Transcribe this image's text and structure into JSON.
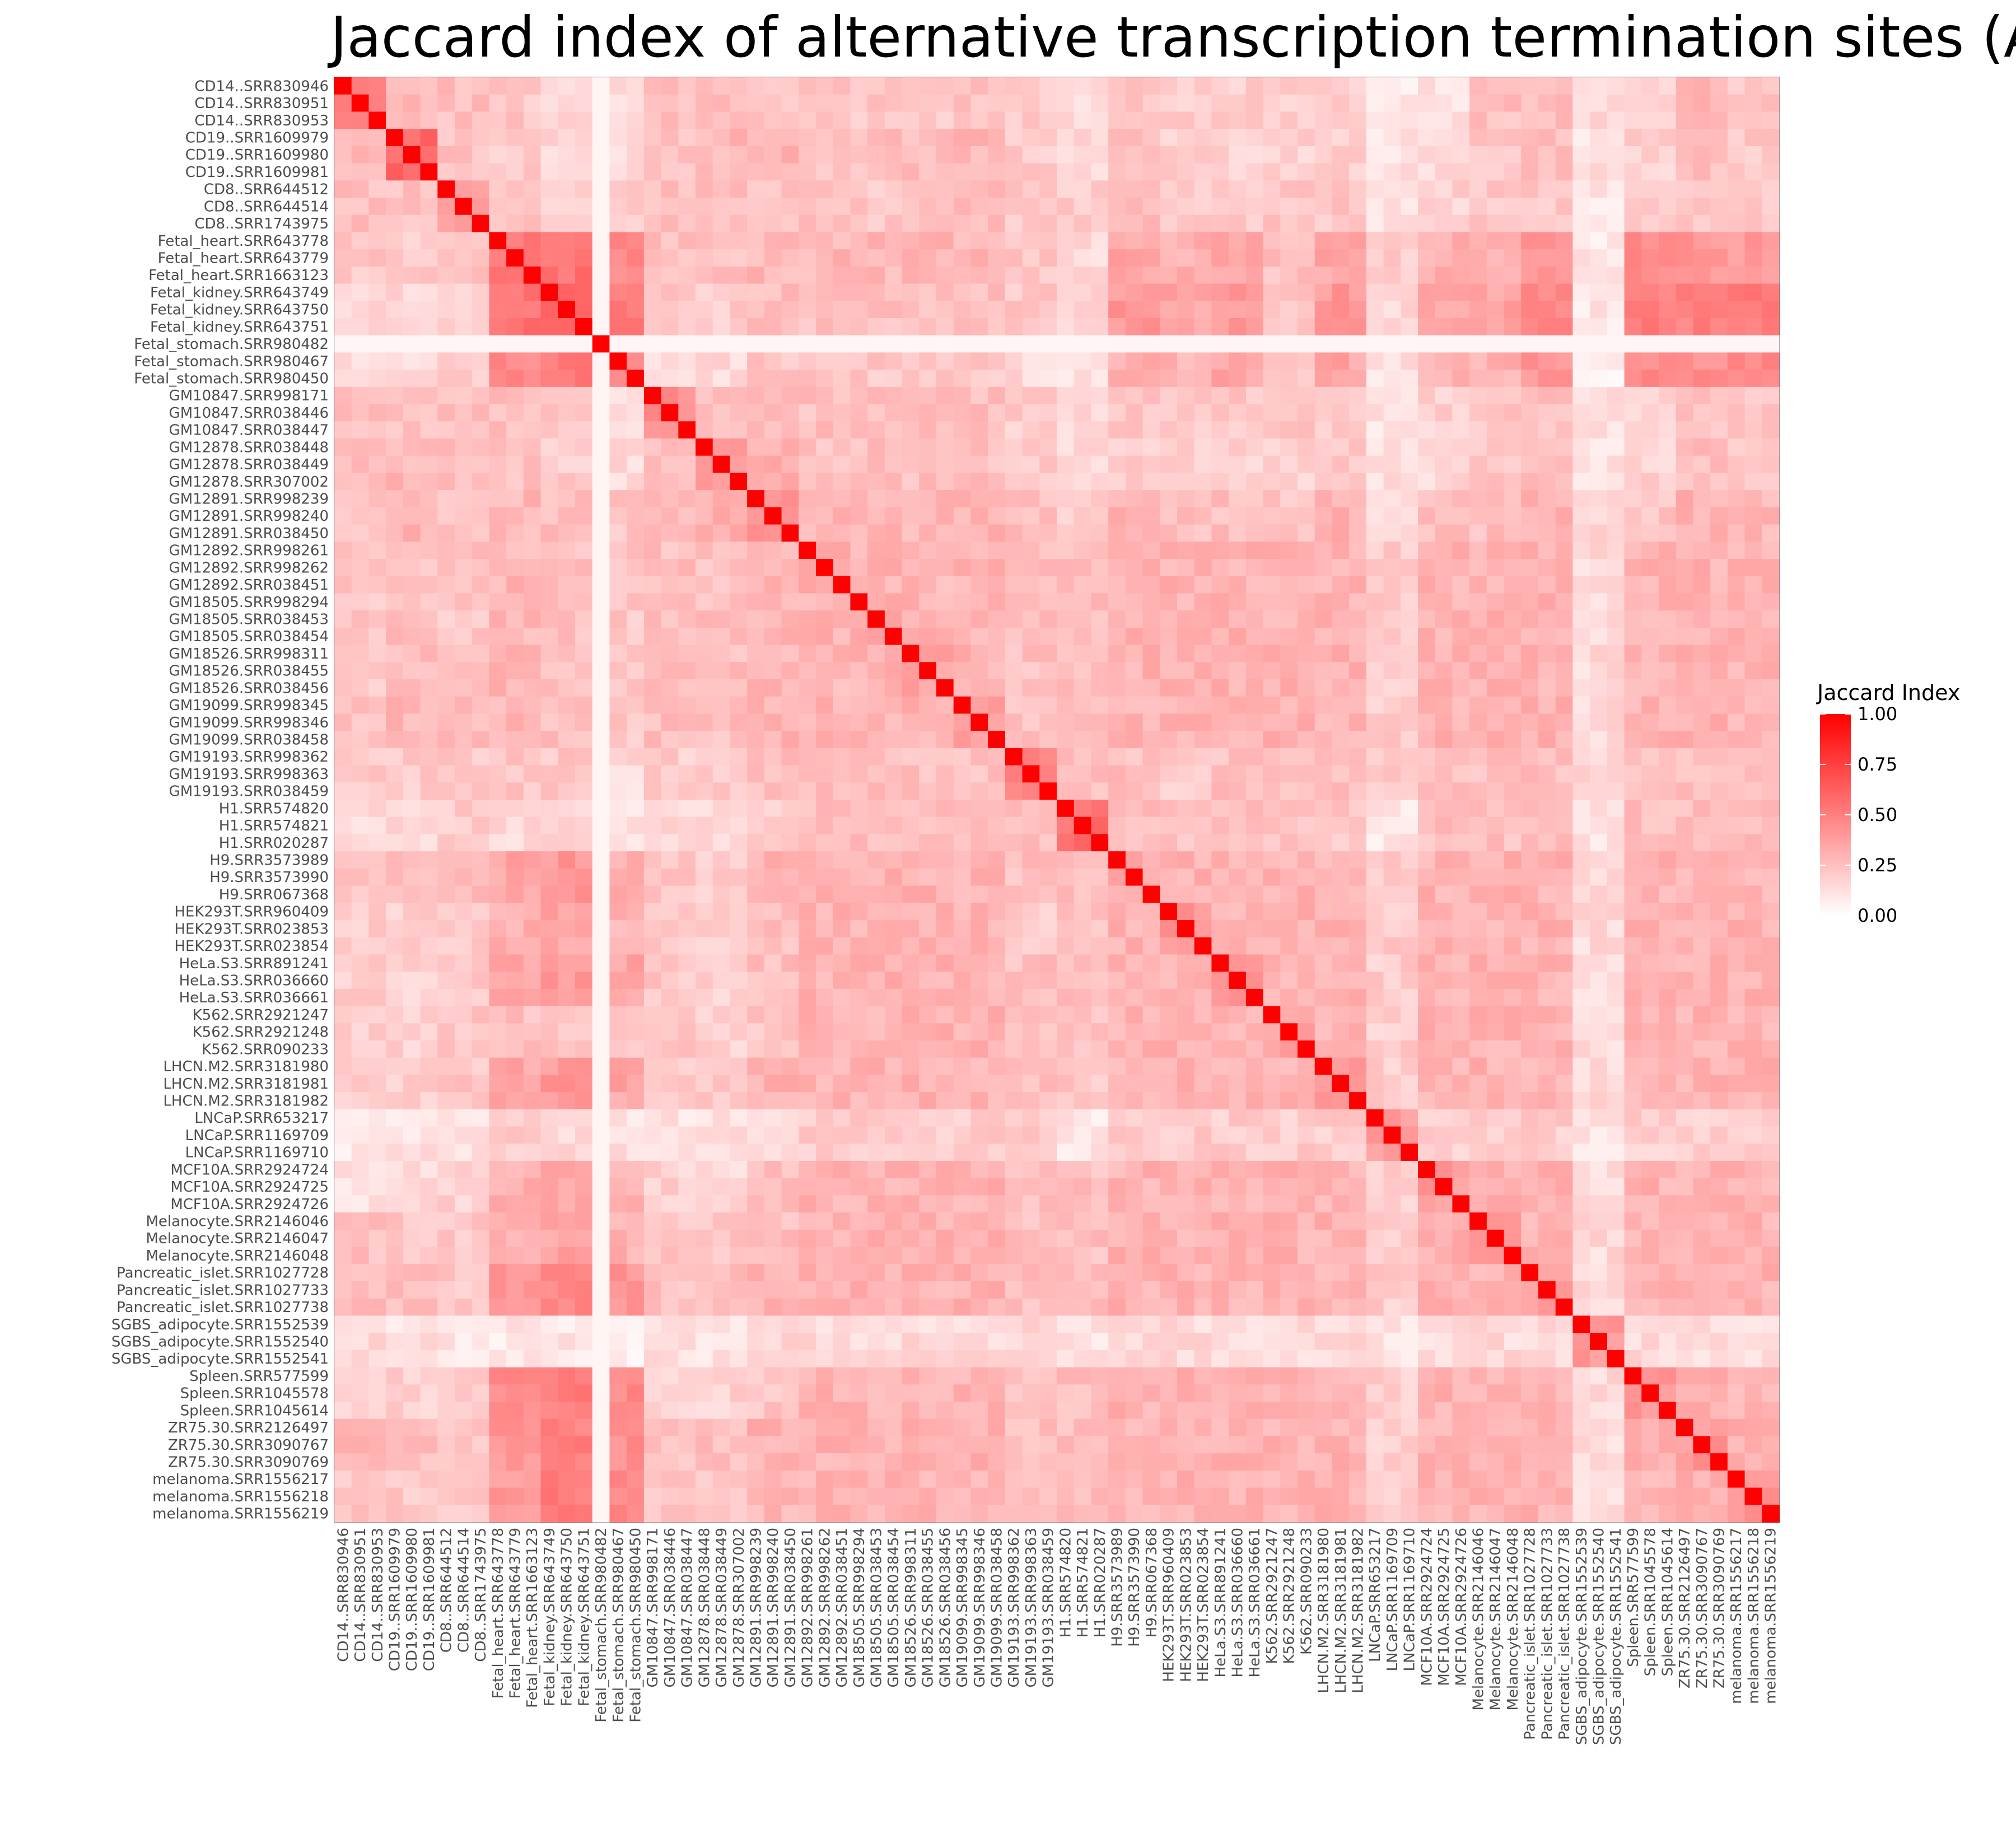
{
  "chart_data": {
    "type": "heatmap",
    "title": "Jaccard index of alternative transcription termination sites (A",
    "xlabel": "",
    "ylabel": "",
    "zlim": [
      0,
      1
    ],
    "color_scale": {
      "low": "#ffffff",
      "high": "#ff0000"
    },
    "legend": {
      "title": "Jaccard Index",
      "ticks": [
        "1.00",
        "0.75",
        "0.50",
        "0.25",
        "0.00"
      ],
      "tick_values": [
        1.0,
        0.75,
        0.5,
        0.25,
        0.0
      ],
      "placement": "right"
    },
    "samples": [
      "CD14..SRR830946",
      "CD14..SRR830951",
      "CD14..SRR830953",
      "CD19..SRR1609979",
      "CD19..SRR1609980",
      "CD19..SRR1609981",
      "CD8..SRR644512",
      "CD8..SRR644514",
      "CD8..SRR1743975",
      "Fetal_heart.SRR643778",
      "Fetal_heart.SRR643779",
      "Fetal_heart.SRR1663123",
      "Fetal_kidney.SRR643749",
      "Fetal_kidney.SRR643750",
      "Fetal_kidney.SRR643751",
      "Fetal_stomach.SRR980482",
      "Fetal_stomach.SRR980467",
      "Fetal_stomach.SRR980450",
      "GM10847.SRR998171",
      "GM10847.SRR038446",
      "GM10847.SRR038447",
      "GM12878.SRR038448",
      "GM12878.SRR038449",
      "GM12878.SRR307002",
      "GM12891.SRR998239",
      "GM12891.SRR998240",
      "GM12891.SRR038450",
      "GM12892.SRR998261",
      "GM12892.SRR998262",
      "GM12892.SRR038451",
      "GM18505.SRR998294",
      "GM18505.SRR038453",
      "GM18505.SRR038454",
      "GM18526.SRR998311",
      "GM18526.SRR038455",
      "GM18526.SRR038456",
      "GM19099.SRR998345",
      "GM19099.SRR998346",
      "GM19099.SRR038458",
      "GM19193.SRR998362",
      "GM19193.SRR998363",
      "GM19193.SRR038459",
      "H1.SRR574820",
      "H1.SRR574821",
      "H1.SRR020287",
      "H9.SRR3573989",
      "H9.SRR3573990",
      "H9.SRR067368",
      "HEK293T.SRR960409",
      "HEK293T.SRR023853",
      "HEK293T.SRR023854",
      "HeLa.S3.SRR891241",
      "HeLa.S3.SRR036660",
      "HeLa.S3.SRR036661",
      "K562.SRR2921247",
      "K562.SRR2921248",
      "K562.SRR090233",
      "LHCN.M2.SRR3181980",
      "LHCN.M2.SRR3181981",
      "LHCN.M2.SRR3181982",
      "LNCaP.SRR653217",
      "LNCaP.SRR1169709",
      "LNCaP.SRR1169710",
      "MCF10A.SRR2924724",
      "MCF10A.SRR2924725",
      "MCF10A.SRR2924726",
      "Melanocyte.SRR2146046",
      "Melanocyte.SRR2146047",
      "Melanocyte.SRR2146048",
      "Pancreatic_islet.SRR1027728",
      "Pancreatic_islet.SRR1027733",
      "Pancreatic_islet.SRR1027738",
      "SGBS_adipocyte.SRR1552539",
      "SGBS_adipocyte.SRR1552540",
      "SGBS_adipocyte.SRR1552541",
      "Spleen.SRR577599",
      "Spleen.SRR1045578",
      "Spleen.SRR1045614",
      "ZR75.30.SRR2126497",
      "ZR75.30.SRR3090767",
      "ZR75.30.SRR3090769",
      "melanoma.SRR1556217",
      "melanoma.SRR1556218",
      "melanoma.SRR1556219"
    ],
    "block_means": [
      [
        0.55,
        0.28,
        0.25,
        0.22,
        0.15,
        0.12,
        0.25,
        0.25,
        0.22,
        0.22,
        0.22,
        0.22,
        0.25,
        0.2,
        0.15,
        0.25,
        0.2,
        0.2,
        0.2,
        0.2,
        0.1,
        0.12,
        0.25,
        0.25,
        0.15,
        0.2,
        0.3,
        0.22,
        0.22,
        0.22
      ],
      [
        0.28,
        0.6,
        0.25,
        0.2,
        0.15,
        0.12,
        0.25,
        0.28,
        0.3,
        0.22,
        0.25,
        0.25,
        0.28,
        0.2,
        0.15,
        0.25,
        0.2,
        0.18,
        0.18,
        0.2,
        0.12,
        0.15,
        0.22,
        0.25,
        0.12,
        0.18,
        0.25,
        0.22,
        0.15,
        0.2
      ],
      [
        0.25,
        0.25,
        0.35,
        0.22,
        0.2,
        0.2,
        0.25,
        0.25,
        0.25,
        0.25,
        0.22,
        0.22,
        0.25,
        0.22,
        0.2,
        0.25,
        0.2,
        0.22,
        0.22,
        0.22,
        0.12,
        0.18,
        0.22,
        0.22,
        0.1,
        0.22,
        0.22,
        0.22,
        0.15,
        0.15
      ],
      [
        0.22,
        0.2,
        0.22,
        0.55,
        0.55,
        0.45,
        0.25,
        0.25,
        0.28,
        0.28,
        0.28,
        0.3,
        0.28,
        0.22,
        0.15,
        0.35,
        0.3,
        0.35,
        0.25,
        0.35,
        0.2,
        0.3,
        0.3,
        0.4,
        0.1,
        0.45,
        0.4,
        0.4,
        0.15,
        0.15
      ],
      [
        0.15,
        0.15,
        0.2,
        0.55,
        0.65,
        0.5,
        0.22,
        0.2,
        0.25,
        0.25,
        0.25,
        0.25,
        0.25,
        0.22,
        0.15,
        0.4,
        0.35,
        0.4,
        0.22,
        0.4,
        0.15,
        0.35,
        0.35,
        0.45,
        0.1,
        0.5,
        0.5,
        0.5,
        0.15,
        0.15
      ],
      [
        0.12,
        0.12,
        0.2,
        0.45,
        0.5,
        0.45,
        0.15,
        0.15,
        0.22,
        0.22,
        0.22,
        0.22,
        0.22,
        0.15,
        0.1,
        0.3,
        0.3,
        0.35,
        0.2,
        0.35,
        0.12,
        0.3,
        0.3,
        0.4,
        0.08,
        0.45,
        0.45,
        0.45,
        0.1,
        0.1
      ],
      [
        0.25,
        0.25,
        0.25,
        0.25,
        0.22,
        0.15,
        0.45,
        0.25,
        0.28,
        0.25,
        0.25,
        0.25,
        0.25,
        0.2,
        0.15,
        0.22,
        0.2,
        0.22,
        0.22,
        0.22,
        0.12,
        0.18,
        0.22,
        0.25,
        0.12,
        0.18,
        0.25,
        0.22,
        0.15,
        0.2
      ],
      [
        0.25,
        0.28,
        0.25,
        0.25,
        0.2,
        0.15,
        0.25,
        0.4,
        0.3,
        0.25,
        0.25,
        0.25,
        0.25,
        0.2,
        0.15,
        0.2,
        0.2,
        0.18,
        0.18,
        0.2,
        0.12,
        0.15,
        0.22,
        0.25,
        0.12,
        0.18,
        0.25,
        0.22,
        0.15,
        0.2
      ],
      [
        0.22,
        0.3,
        0.25,
        0.28,
        0.25,
        0.22,
        0.28,
        0.3,
        0.4,
        0.28,
        0.28,
        0.28,
        0.3,
        0.25,
        0.2,
        0.3,
        0.25,
        0.25,
        0.22,
        0.3,
        0.15,
        0.25,
        0.25,
        0.3,
        0.15,
        0.22,
        0.3,
        0.28,
        0.15,
        0.2
      ],
      [
        0.22,
        0.22,
        0.25,
        0.28,
        0.25,
        0.22,
        0.25,
        0.25,
        0.28,
        0.35,
        0.3,
        0.28,
        0.3,
        0.25,
        0.25,
        0.3,
        0.3,
        0.3,
        0.3,
        0.3,
        0.2,
        0.3,
        0.3,
        0.3,
        0.15,
        0.3,
        0.3,
        0.3,
        0.2,
        0.2
      ],
      [
        0.22,
        0.25,
        0.22,
        0.28,
        0.25,
        0.22,
        0.25,
        0.25,
        0.28,
        0.3,
        0.35,
        0.3,
        0.3,
        0.25,
        0.25,
        0.3,
        0.3,
        0.3,
        0.3,
        0.3,
        0.2,
        0.3,
        0.3,
        0.3,
        0.15,
        0.3,
        0.3,
        0.3,
        0.2,
        0.2
      ],
      [
        0.22,
        0.25,
        0.22,
        0.3,
        0.25,
        0.22,
        0.25,
        0.25,
        0.28,
        0.28,
        0.3,
        0.35,
        0.3,
        0.25,
        0.25,
        0.3,
        0.3,
        0.3,
        0.3,
        0.3,
        0.2,
        0.3,
        0.3,
        0.3,
        0.15,
        0.3,
        0.3,
        0.3,
        0.2,
        0.2
      ],
      [
        0.25,
        0.28,
        0.25,
        0.28,
        0.25,
        0.22,
        0.25,
        0.25,
        0.3,
        0.3,
        0.3,
        0.3,
        0.35,
        0.25,
        0.25,
        0.3,
        0.3,
        0.3,
        0.3,
        0.3,
        0.2,
        0.3,
        0.3,
        0.3,
        0.15,
        0.3,
        0.3,
        0.3,
        0.2,
        0.2
      ],
      [
        0.2,
        0.2,
        0.22,
        0.22,
        0.22,
        0.15,
        0.2,
        0.2,
        0.25,
        0.25,
        0.25,
        0.25,
        0.25,
        0.45,
        0.25,
        0.25,
        0.2,
        0.25,
        0.25,
        0.25,
        0.2,
        0.25,
        0.25,
        0.25,
        0.15,
        0.25,
        0.25,
        0.25,
        0.2,
        0.2
      ],
      [
        0.15,
        0.15,
        0.2,
        0.15,
        0.15,
        0.1,
        0.15,
        0.15,
        0.2,
        0.25,
        0.25,
        0.25,
        0.25,
        0.25,
        0.55,
        0.25,
        0.25,
        0.25,
        0.25,
        0.22,
        0.1,
        0.25,
        0.25,
        0.25,
        0.1,
        0.25,
        0.25,
        0.25,
        0.15,
        0.15
      ],
      [
        0.25,
        0.25,
        0.25,
        0.35,
        0.4,
        0.3,
        0.22,
        0.2,
        0.3,
        0.3,
        0.3,
        0.3,
        0.3,
        0.25,
        0.25,
        0.35,
        0.3,
        0.3,
        0.3,
        0.3,
        0.2,
        0.3,
        0.3,
        0.3,
        0.15,
        0.3,
        0.3,
        0.3,
        0.2,
        0.2
      ],
      [
        0.2,
        0.2,
        0.2,
        0.3,
        0.35,
        0.3,
        0.2,
        0.2,
        0.25,
        0.3,
        0.3,
        0.3,
        0.3,
        0.2,
        0.25,
        0.3,
        0.4,
        0.3,
        0.3,
        0.3,
        0.2,
        0.3,
        0.3,
        0.3,
        0.15,
        0.3,
        0.3,
        0.3,
        0.2,
        0.2
      ],
      [
        0.2,
        0.18,
        0.22,
        0.35,
        0.4,
        0.35,
        0.22,
        0.18,
        0.25,
        0.3,
        0.3,
        0.3,
        0.3,
        0.25,
        0.25,
        0.3,
        0.3,
        0.4,
        0.3,
        0.3,
        0.2,
        0.3,
        0.3,
        0.3,
        0.15,
        0.3,
        0.3,
        0.3,
        0.2,
        0.2
      ],
      [
        0.2,
        0.18,
        0.22,
        0.25,
        0.22,
        0.2,
        0.22,
        0.18,
        0.22,
        0.3,
        0.3,
        0.3,
        0.3,
        0.25,
        0.25,
        0.3,
        0.3,
        0.3,
        0.35,
        0.3,
        0.2,
        0.3,
        0.3,
        0.3,
        0.15,
        0.3,
        0.3,
        0.3,
        0.2,
        0.2
      ],
      [
        0.2,
        0.2,
        0.22,
        0.35,
        0.4,
        0.35,
        0.22,
        0.2,
        0.3,
        0.3,
        0.3,
        0.3,
        0.3,
        0.25,
        0.22,
        0.3,
        0.3,
        0.3,
        0.3,
        0.4,
        0.2,
        0.3,
        0.3,
        0.3,
        0.15,
        0.3,
        0.3,
        0.3,
        0.2,
        0.2
      ],
      [
        0.1,
        0.12,
        0.12,
        0.2,
        0.15,
        0.12,
        0.12,
        0.12,
        0.15,
        0.2,
        0.2,
        0.2,
        0.2,
        0.2,
        0.1,
        0.2,
        0.2,
        0.2,
        0.2,
        0.2,
        0.4,
        0.2,
        0.2,
        0.2,
        0.1,
        0.2,
        0.2,
        0.2,
        0.15,
        0.15
      ],
      [
        0.12,
        0.15,
        0.18,
        0.3,
        0.35,
        0.3,
        0.18,
        0.15,
        0.25,
        0.3,
        0.3,
        0.3,
        0.3,
        0.25,
        0.25,
        0.3,
        0.3,
        0.3,
        0.3,
        0.3,
        0.2,
        0.4,
        0.3,
        0.3,
        0.15,
        0.3,
        0.3,
        0.3,
        0.2,
        0.2
      ],
      [
        0.25,
        0.22,
        0.22,
        0.3,
        0.35,
        0.3,
        0.22,
        0.22,
        0.25,
        0.3,
        0.3,
        0.3,
        0.3,
        0.25,
        0.25,
        0.3,
        0.3,
        0.3,
        0.3,
        0.3,
        0.2,
        0.3,
        0.4,
        0.3,
        0.15,
        0.3,
        0.3,
        0.3,
        0.2,
        0.2
      ],
      [
        0.25,
        0.25,
        0.22,
        0.4,
        0.45,
        0.4,
        0.25,
        0.25,
        0.3,
        0.3,
        0.3,
        0.3,
        0.3,
        0.25,
        0.25,
        0.3,
        0.3,
        0.3,
        0.3,
        0.3,
        0.2,
        0.3,
        0.3,
        0.4,
        0.15,
        0.3,
        0.3,
        0.3,
        0.2,
        0.2
      ],
      [
        0.15,
        0.12,
        0.1,
        0.1,
        0.1,
        0.08,
        0.12,
        0.12,
        0.15,
        0.15,
        0.15,
        0.15,
        0.15,
        0.15,
        0.1,
        0.15,
        0.15,
        0.15,
        0.15,
        0.15,
        0.1,
        0.15,
        0.15,
        0.15,
        0.4,
        0.15,
        0.15,
        0.15,
        0.15,
        0.15
      ],
      [
        0.2,
        0.18,
        0.22,
        0.45,
        0.5,
        0.45,
        0.18,
        0.18,
        0.22,
        0.3,
        0.3,
        0.3,
        0.3,
        0.25,
        0.25,
        0.3,
        0.3,
        0.3,
        0.3,
        0.3,
        0.2,
        0.3,
        0.3,
        0.3,
        0.15,
        0.4,
        0.3,
        0.3,
        0.2,
        0.2
      ],
      [
        0.3,
        0.25,
        0.22,
        0.4,
        0.5,
        0.45,
        0.25,
        0.25,
        0.3,
        0.3,
        0.3,
        0.3,
        0.3,
        0.25,
        0.25,
        0.3,
        0.3,
        0.3,
        0.3,
        0.3,
        0.2,
        0.3,
        0.3,
        0.3,
        0.15,
        0.3,
        0.4,
        0.3,
        0.2,
        0.2
      ],
      [
        0.22,
        0.22,
        0.22,
        0.4,
        0.5,
        0.45,
        0.22,
        0.22,
        0.28,
        0.3,
        0.3,
        0.3,
        0.3,
        0.25,
        0.25,
        0.3,
        0.3,
        0.3,
        0.3,
        0.3,
        0.2,
        0.3,
        0.3,
        0.3,
        0.15,
        0.3,
        0.3,
        0.4,
        0.2,
        0.2
      ],
      [
        0.22,
        0.15,
        0.15,
        0.15,
        0.15,
        0.1,
        0.15,
        0.15,
        0.15,
        0.2,
        0.2,
        0.2,
        0.2,
        0.2,
        0.15,
        0.2,
        0.2,
        0.2,
        0.2,
        0.2,
        0.15,
        0.2,
        0.2,
        0.2,
        0.15,
        0.2,
        0.2,
        0.2,
        0.4,
        0.25
      ],
      [
        0.22,
        0.2,
        0.15,
        0.15,
        0.15,
        0.1,
        0.2,
        0.2,
        0.2,
        0.2,
        0.2,
        0.2,
        0.2,
        0.2,
        0.15,
        0.2,
        0.2,
        0.2,
        0.2,
        0.2,
        0.15,
        0.2,
        0.2,
        0.2,
        0.15,
        0.2,
        0.2,
        0.2,
        0.25,
        0.45
      ]
    ],
    "diagonal": 1.0
  }
}
